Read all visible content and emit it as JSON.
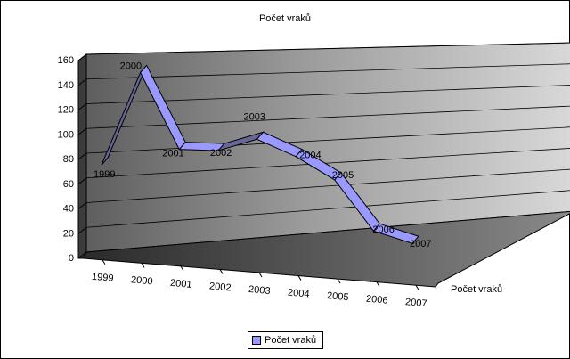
{
  "chart_data": {
    "type": "line",
    "title": "Počet vraků",
    "categories": [
      "1999",
      "2000",
      "2001",
      "2002",
      "2003",
      "2004",
      "2005",
      "2006",
      "2007"
    ],
    "series": [
      {
        "name": "Počet vraků",
        "values": [
          82,
          157,
          93,
          91,
          100,
          84,
          62,
          14,
          0
        ],
        "color": "#9999ff"
      }
    ],
    "point_labels": [
      "1999",
      "2000",
      "2001",
      "2002",
      "2003",
      "2004",
      "2005",
      "2006",
      "2007"
    ],
    "yticks": [
      "0",
      "20",
      "40",
      "60",
      "80",
      "100",
      "120",
      "140",
      "160"
    ],
    "ylim": [
      0,
      160
    ],
    "grid": true,
    "three_d": true,
    "depth_axis_label": "Počet vraků",
    "legend_position": "bottom"
  }
}
